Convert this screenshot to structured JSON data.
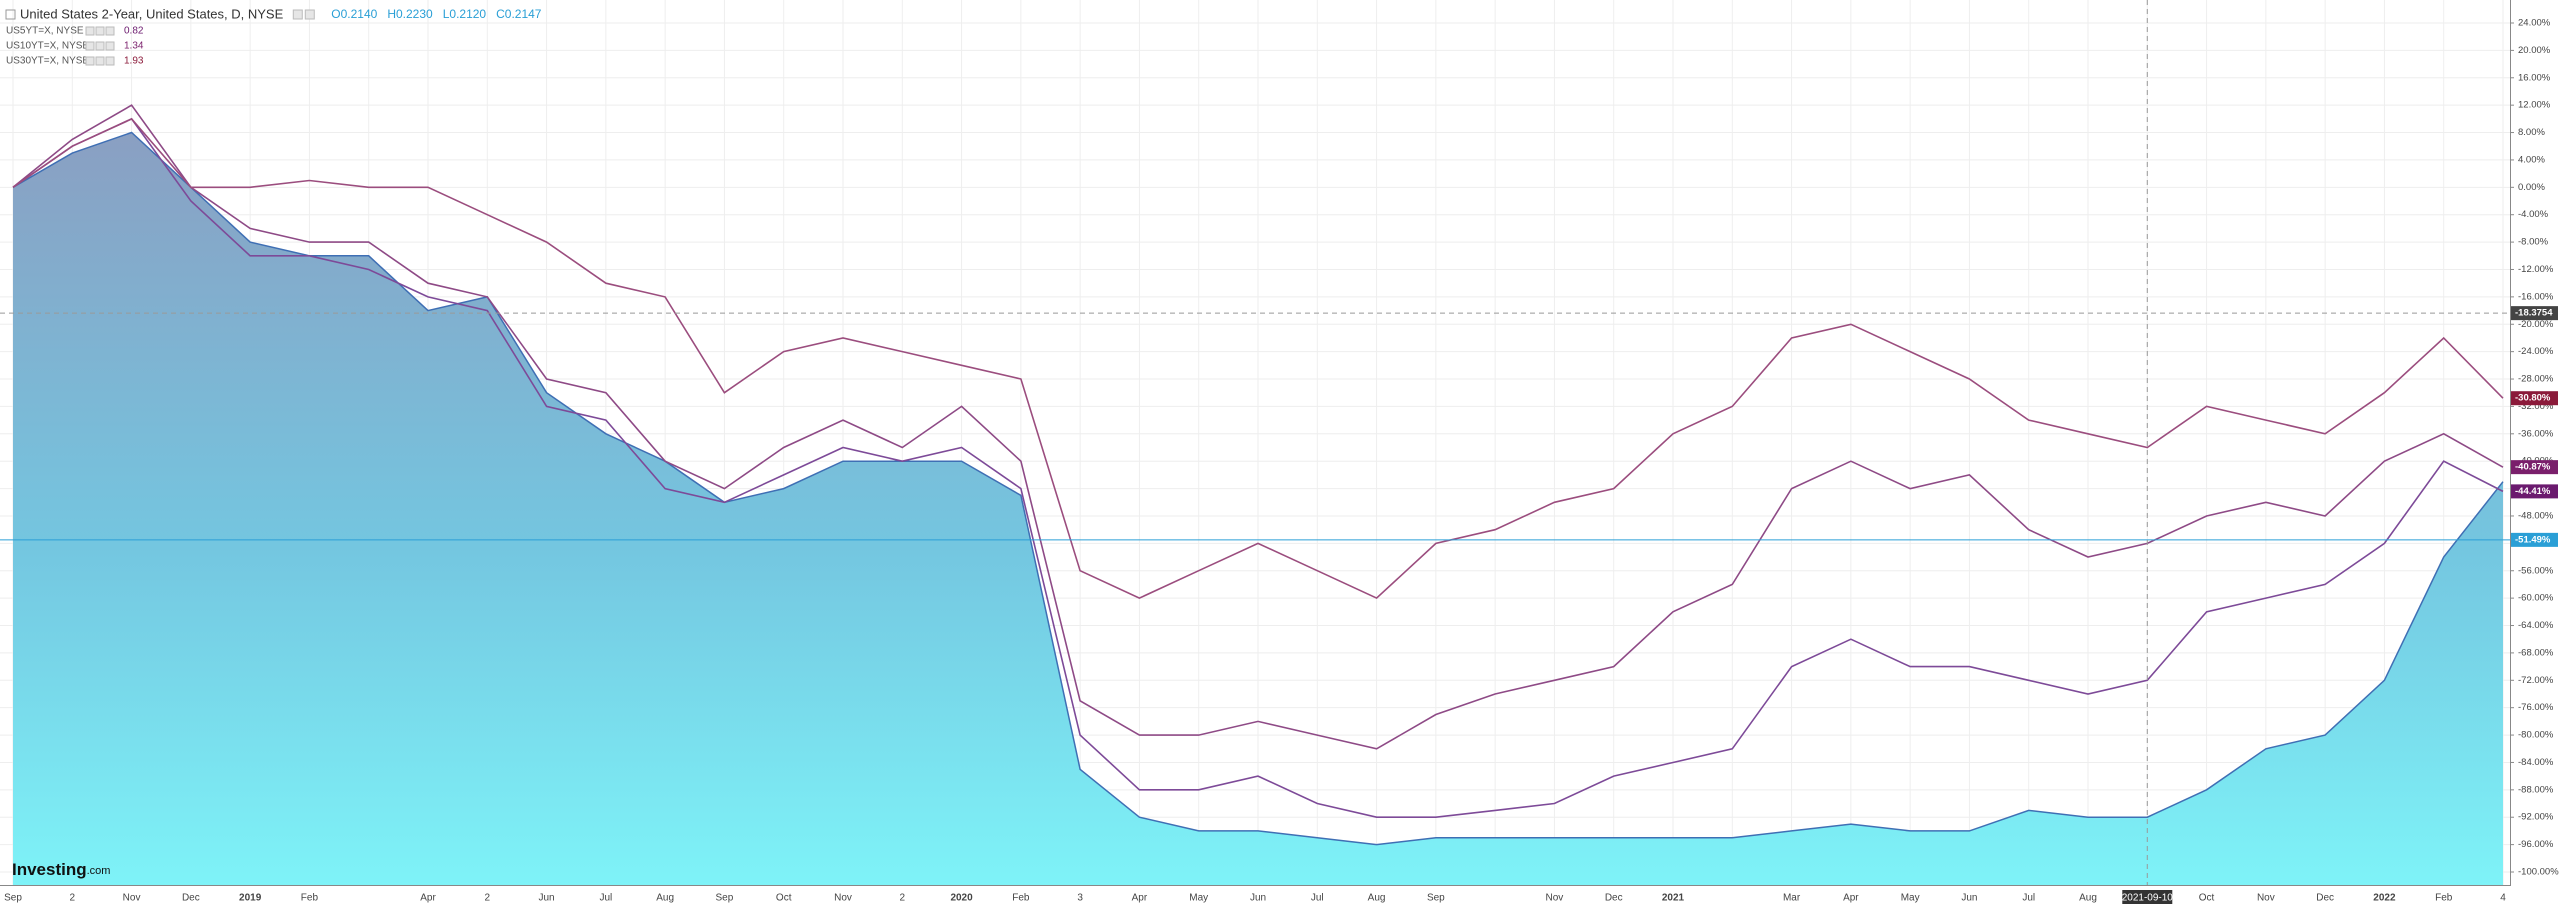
{
  "chart_data": {
    "type": "line",
    "title": "United States 2-Year, United States, D, NYSE",
    "ohlc": [
      [
        "O",
        "0.2140"
      ],
      [
        "H",
        "0.2230"
      ],
      [
        "L",
        "0.2120"
      ],
      [
        "C",
        "0.2147"
      ]
    ],
    "categories": [
      "Sep",
      "2",
      "Nov",
      "Dec",
      "2019",
      "Feb",
      null,
      "Apr",
      "2",
      "Jun",
      "Jul",
      "Aug",
      "Sep",
      "Oct",
      "Nov",
      "2",
      "2020",
      "Feb",
      "3",
      "Apr",
      "May",
      "Jun",
      "Jul",
      "Aug",
      "Sep",
      null,
      "Nov",
      "Dec",
      "2021",
      null,
      "Mar",
      "Apr",
      "May",
      "Jun",
      "Jul",
      "Aug",
      "2021-09-10",
      "Oct",
      "Nov",
      "Dec",
      "2022",
      "Feb",
      "4"
    ],
    "area": {
      "color": "#5fe3ef",
      "line_color": "#3f6fb4",
      "values": [
        0,
        5,
        8,
        0,
        -8,
        -10,
        -10,
        -18,
        -16,
        -30,
        -36,
        -40,
        -46,
        -44,
        -40,
        -40,
        -40,
        -45,
        -85,
        -92,
        -94,
        -94,
        -95,
        -96,
        -95,
        -95,
        -95,
        -95,
        -95,
        -95,
        -94,
        -93,
        -94,
        -94,
        -91,
        -92,
        -92,
        -88,
        -82,
        -80,
        -72,
        -54,
        -43
      ]
    },
    "series": [
      {
        "name": "US5YT=X, NYSE",
        "legend_value": "0.82",
        "color": "#7d4a98",
        "label_color": "#6b1a6e",
        "end_label": "-44.41%",
        "values": [
          0,
          6,
          10,
          -2,
          -10,
          -10,
          -12,
          -16,
          -18,
          -32,
          -34,
          -44,
          -46,
          -42,
          -38,
          -40,
          -38,
          -44,
          -80,
          -88,
          -88,
          -86,
          -90,
          -92,
          -92,
          -91,
          -90,
          -86,
          -84,
          -82,
          -70,
          -66,
          -70,
          -70,
          -72,
          -74,
          -72,
          -62,
          -60,
          -58,
          -52,
          -40,
          -44.41
        ]
      },
      {
        "name": "US10YT=X, NYSE",
        "legend_value": "1.34",
        "color": "#8e4a86",
        "label_color": "#7a1f6b",
        "end_label": "-40.87%",
        "values": [
          0,
          7,
          12,
          0,
          -6,
          -8,
          -8,
          -14,
          -16,
          -28,
          -30,
          -40,
          -44,
          -38,
          -34,
          -38,
          -32,
          -40,
          -75,
          -80,
          -80,
          -78,
          -80,
          -82,
          -77,
          -74,
          -72,
          -70,
          -62,
          -58,
          -44,
          -40,
          -44,
          -42,
          -50,
          -54,
          -52,
          -48,
          -46,
          -48,
          -40,
          -36,
          -40.87
        ]
      },
      {
        "name": "US30YT=X, NYSE",
        "legend_value": "1.93",
        "color": "#9b4d7e",
        "label_color": "#8b1a3a",
        "end_label": "-30.80%",
        "values": [
          0,
          6,
          10,
          0,
          0,
          1,
          0,
          0,
          -4,
          -8,
          -14,
          -16,
          -30,
          -24,
          -22,
          -24,
          -26,
          -28,
          -56,
          -60,
          -56,
          -52,
          -56,
          -60,
          -52,
          -50,
          -46,
          -44,
          -36,
          -32,
          -22,
          -20,
          -24,
          -28,
          -34,
          -36,
          -38,
          -32,
          -34,
          -36,
          -30,
          -22,
          -30.8
        ]
      }
    ],
    "hline": {
      "value": -51.49,
      "label": "-51.49%",
      "color": "#2a9fd6"
    },
    "crosshair": {
      "x": "2021-09-10",
      "y": {
        "value": -18.3754,
        "label": "-18.3754"
      }
    },
    "ylim": [
      24,
      -100
    ],
    "yticks": [
      {
        "value": 24,
        "label": "24.00%"
      },
      {
        "value": 20,
        "label": "20.00%"
      },
      {
        "value": 16,
        "label": "16.00%"
      },
      {
        "value": 12,
        "label": "12.00%"
      },
      {
        "value": 8,
        "label": "8.00%"
      },
      {
        "value": 4,
        "label": "4.00%"
      },
      {
        "value": 0,
        "label": "0.00%"
      },
      {
        "value": -4,
        "label": "-4.00%"
      },
      {
        "value": -8,
        "label": "-8.00%"
      },
      {
        "value": -12,
        "label": "-12.00%"
      },
      {
        "value": -16,
        "label": "-16.00%"
      },
      {
        "value": -20,
        "label": "-20.00%"
      },
      {
        "value": -24,
        "label": "-24.00%"
      },
      {
        "value": -28,
        "label": "-28.00%"
      },
      {
        "value": -32,
        "label": "-32.00%"
      },
      {
        "value": -36,
        "label": "-36.00%"
      },
      {
        "value": -40,
        "label": "-40.00%"
      },
      {
        "value": -44,
        "label": "-44.00%"
      },
      {
        "value": -48,
        "label": "-48.00%"
      },
      {
        "value": -52,
        "label": "-52.00%"
      },
      {
        "value": -56,
        "label": "-56.00%"
      },
      {
        "value": -60,
        "label": "-60.00%"
      },
      {
        "value": -64,
        "label": "-64.00%"
      },
      {
        "value": -68,
        "label": "-68.00%"
      },
      {
        "value": -72,
        "label": "-72.00%"
      },
      {
        "value": -76,
        "label": "-76.00%"
      },
      {
        "value": -80,
        "label": "-80.00%"
      },
      {
        "value": -84,
        "label": "-84.00%"
      },
      {
        "value": -88,
        "label": "-88.00%"
      },
      {
        "value": -92,
        "label": "-92.00%"
      },
      {
        "value": -96,
        "label": "-96.00%"
      },
      {
        "value": -100,
        "label": "-100.00%"
      }
    ],
    "grid": true,
    "logo": [
      "Investing",
      ".com"
    ]
  }
}
